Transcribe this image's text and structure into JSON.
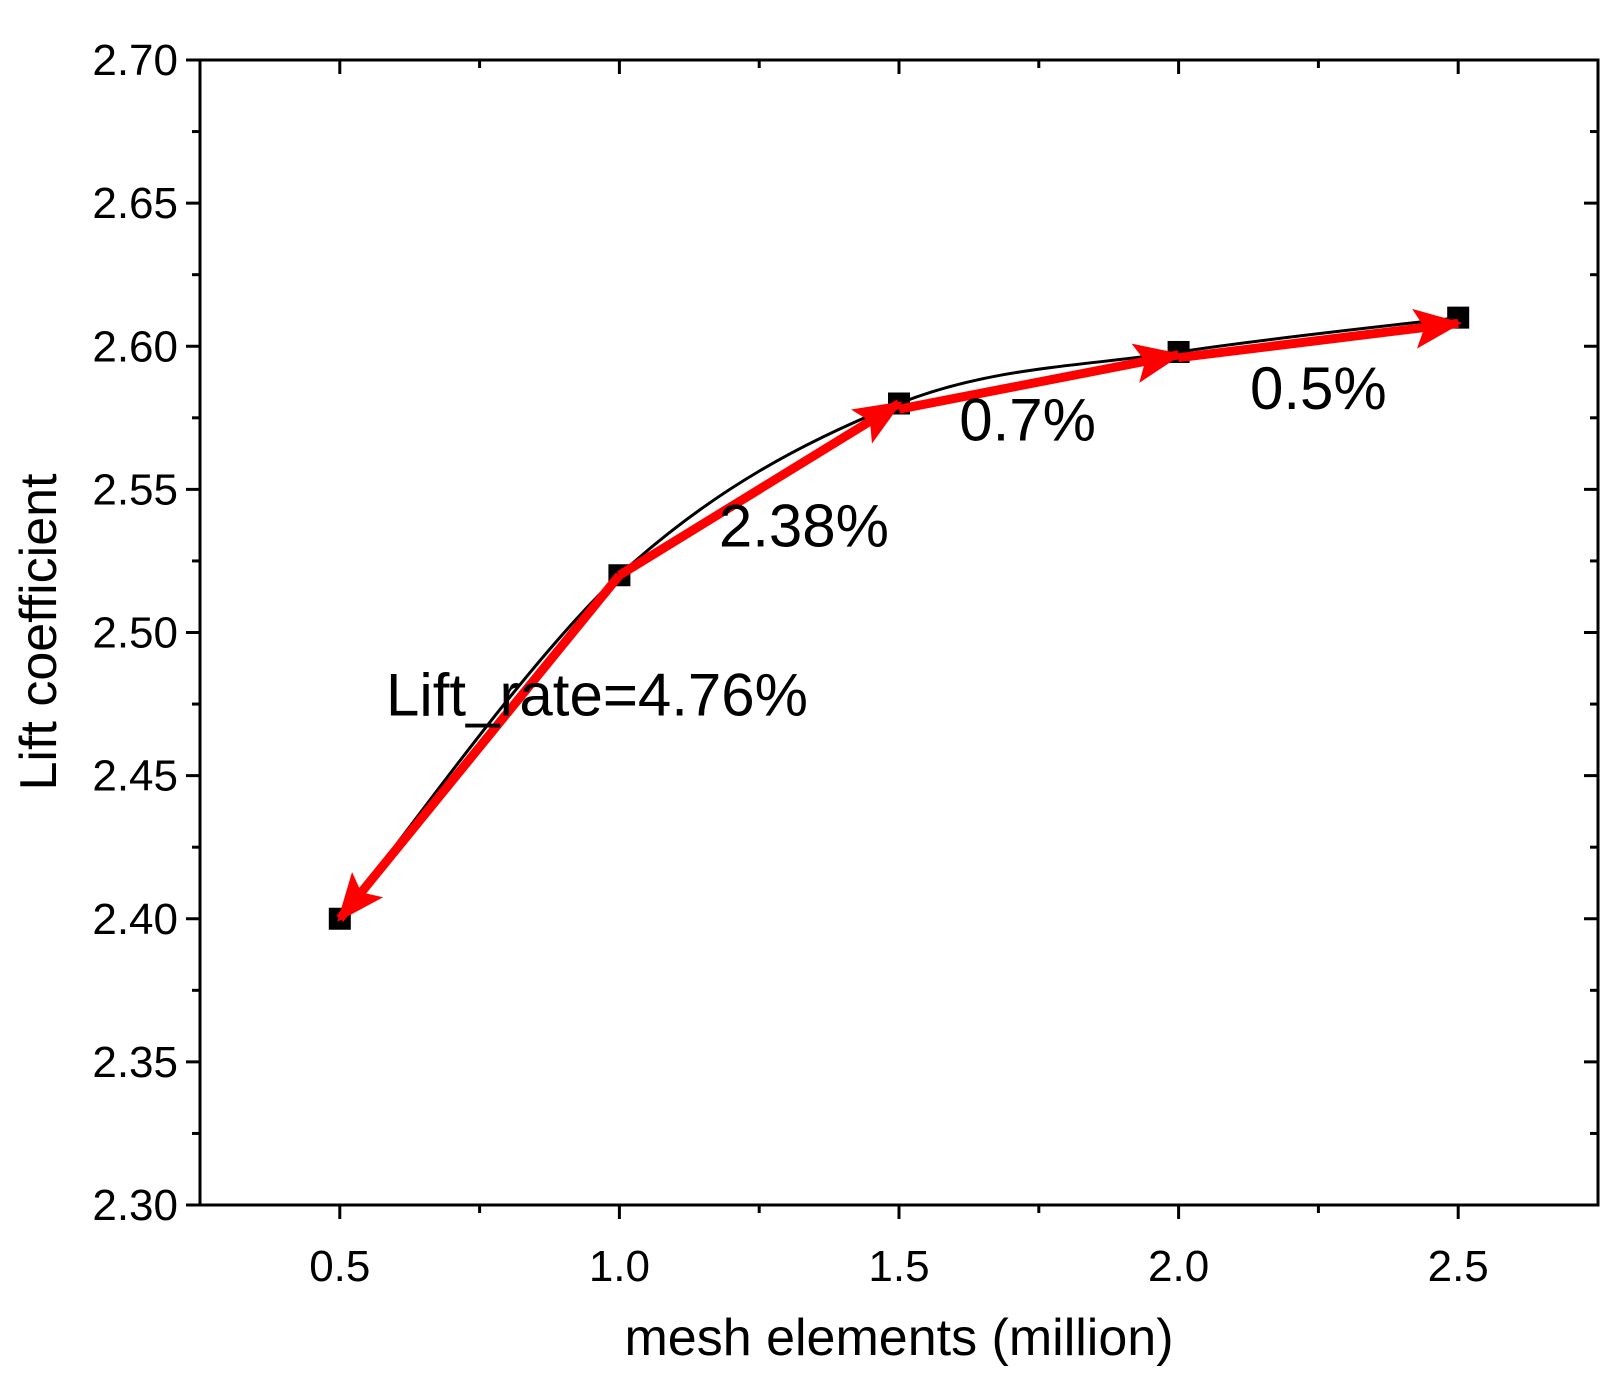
{
  "chart_data": {
    "type": "line",
    "title": "",
    "xlabel": "mesh elements (million)",
    "ylabel": "Lift coefficient",
    "xlim": [
      0.25,
      2.75
    ],
    "ylim": [
      2.3,
      2.7
    ],
    "xticks": [
      "0.5",
      "1.0",
      "1.5",
      "2.0",
      "2.5"
    ],
    "yticks": [
      "2.30",
      "2.35",
      "2.40",
      "2.45",
      "2.50",
      "2.55",
      "2.60",
      "2.65",
      "2.70"
    ],
    "series": [
      {
        "name": "Lift coefficient",
        "marker": "square",
        "x": [
          0.5,
          1.0,
          1.5,
          2.0,
          2.5
        ],
        "y": [
          2.4,
          2.52,
          2.58,
          2.598,
          2.61
        ]
      }
    ],
    "annotations": [
      {
        "text": "Lift_rate=4.76%",
        "x": 0.96,
        "y": 2.471
      },
      {
        "text": "2.38%",
        "x": 1.33,
        "y": 2.53
      },
      {
        "text": "0.7%",
        "x": 1.73,
        "y": 2.567
      },
      {
        "text": "0.5%",
        "x": 2.25,
        "y": 2.578
      }
    ],
    "arrows": [
      {
        "from": [
          1.0,
          2.52
        ],
        "to": [
          0.5,
          2.4
        ]
      },
      {
        "from": [
          1.0,
          2.52
        ],
        "to": [
          1.5,
          2.58
        ]
      },
      {
        "from": [
          1.5,
          2.578
        ],
        "to": [
          2.0,
          2.597
        ]
      },
      {
        "from": [
          2.0,
          2.596
        ],
        "to": [
          2.5,
          2.608
        ]
      }
    ],
    "colors": {
      "line": "#000000",
      "marker": "#000000",
      "arrow": "#ff0000"
    }
  }
}
